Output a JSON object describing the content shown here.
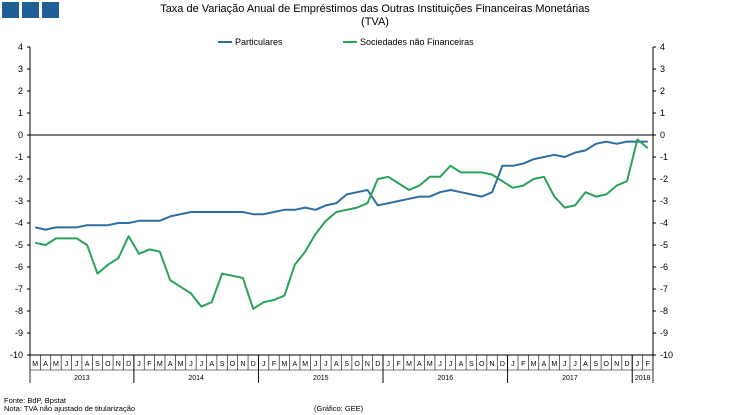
{
  "colors": {
    "logo": "#1f5f96",
    "particulares": "#2f6ea5",
    "sociedades": "#2aa35a"
  },
  "header": {
    "title_line1": "Taxa de Variação Anual de Empréstimos das Outras Instituições Financeiras Monetárias",
    "title_line2": "(TVA)"
  },
  "footer": {
    "source": "Fonte: BdP, Bpstat",
    "note": "Nota: TVA não ajustado de titularização",
    "credit": "(Gráfico: GEE)"
  },
  "chart_data": {
    "type": "line",
    "title": "Taxa de Variação Anual de Empréstimos das Outras Instituições Financeiras Monetárias (TVA)",
    "ylim": [
      -10,
      4
    ],
    "yticks": [
      4,
      3,
      2,
      1,
      0,
      -1,
      -2,
      -3,
      -4,
      -5,
      -6,
      -7,
      -8,
      -9,
      -10
    ],
    "grid": false,
    "legend": "top",
    "months": [
      "M",
      "A",
      "M",
      "J",
      "J",
      "A",
      "S",
      "O",
      "N",
      "D",
      "J",
      "F",
      "M",
      "A",
      "M",
      "J",
      "J",
      "A",
      "S",
      "O",
      "N",
      "D",
      "J",
      "F",
      "M",
      "A",
      "M",
      "J",
      "J",
      "A",
      "S",
      "O",
      "N",
      "D",
      "J",
      "F",
      "M",
      "A",
      "M",
      "J",
      "J",
      "A",
      "S",
      "O",
      "N",
      "D",
      "J",
      "F",
      "M",
      "A",
      "M",
      "J",
      "J",
      "A",
      "S",
      "O",
      "N",
      "D",
      "J",
      "F"
    ],
    "years": [
      {
        "label": "2013",
        "start": 0,
        "end": 10
      },
      {
        "label": "2014",
        "start": 10,
        "end": 22
      },
      {
        "label": "2015",
        "start": 22,
        "end": 34
      },
      {
        "label": "2016",
        "start": 34,
        "end": 46
      },
      {
        "label": "2017",
        "start": 46,
        "end": 58
      },
      {
        "label": "2018",
        "start": 58,
        "end": 60
      }
    ],
    "series": [
      {
        "name": "Particulares",
        "values": [
          -4.2,
          -4.3,
          -4.2,
          -4.2,
          -4.2,
          -4.1,
          -4.1,
          -4.1,
          -4.0,
          -4.0,
          -3.9,
          -3.9,
          -3.9,
          -3.7,
          -3.6,
          -3.5,
          -3.5,
          -3.5,
          -3.5,
          -3.5,
          -3.5,
          -3.6,
          -3.6,
          -3.5,
          -3.4,
          -3.4,
          -3.3,
          -3.4,
          -3.2,
          -3.1,
          -2.7,
          -2.6,
          -2.5,
          -3.2,
          -3.1,
          -3.0,
          -2.9,
          -2.8,
          -2.8,
          -2.6,
          -2.5,
          -2.6,
          -2.7,
          -2.8,
          -2.6,
          -1.4,
          -1.4,
          -1.3,
          -1.1,
          -1.0,
          -0.9,
          -1.0,
          -0.8,
          -0.7,
          -0.4,
          -0.3,
          -0.4,
          -0.3,
          -0.3,
          -0.3
        ]
      },
      {
        "name": "Sociedades não Financeiras",
        "values": [
          -4.9,
          -5.0,
          -4.7,
          -4.7,
          -4.7,
          -5.0,
          -6.3,
          -5.9,
          -5.6,
          -4.6,
          -5.4,
          -5.2,
          -5.3,
          -6.6,
          -6.9,
          -7.2,
          -7.8,
          -7.6,
          -6.3,
          -6.4,
          -6.5,
          -7.9,
          -7.6,
          -7.5,
          -7.3,
          -5.9,
          -5.3,
          -4.5,
          -3.9,
          -3.5,
          -3.4,
          -3.3,
          -3.1,
          -2.0,
          -1.9,
          -2.2,
          -2.5,
          -2.3,
          -1.9,
          -1.9,
          -1.4,
          -1.7,
          -1.7,
          -1.7,
          -1.8,
          -2.1,
          -2.4,
          -2.3,
          -2.0,
          -1.9,
          -2.8,
          -3.3,
          -3.2,
          -2.6,
          -2.8,
          -2.7,
          -2.3,
          -2.1,
          -0.2,
          -0.6
        ]
      }
    ]
  }
}
